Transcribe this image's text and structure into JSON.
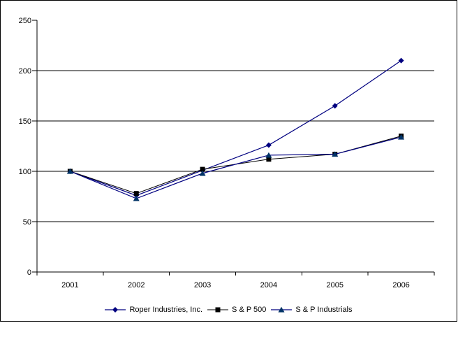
{
  "chart_data": {
    "type": "line",
    "title": "",
    "xlabel": "",
    "ylabel": "",
    "categories": [
      "2001",
      "2002",
      "2003",
      "2004",
      "2005",
      "2006"
    ],
    "series": [
      {
        "name": "Roper Industries, Inc.",
        "values": [
          100,
          76,
          101,
          126,
          165,
          210
        ],
        "color": "#000080",
        "marker": "diamond",
        "marker_color": "#000080",
        "line_width": 1.2
      },
      {
        "name": "S & P 500",
        "values": [
          100,
          78,
          102,
          112,
          117,
          135
        ],
        "color": "#000000",
        "marker": "square",
        "marker_color": "#000000",
        "line_width": 1
      },
      {
        "name": "S & P Industrials",
        "values": [
          100,
          73,
          98,
          116,
          117,
          134
        ],
        "color": "#000080",
        "marker": "triangle",
        "marker_color": "#003366",
        "line_width": 1.2
      }
    ],
    "ylim": [
      0,
      250
    ],
    "yticks": [
      0,
      50,
      100,
      150,
      200,
      250
    ],
    "gridline_values": [
      50,
      100,
      150,
      200
    ],
    "grid": true,
    "legend_position": "bottom",
    "axis_color": "#000000",
    "background": "#ffffff"
  }
}
